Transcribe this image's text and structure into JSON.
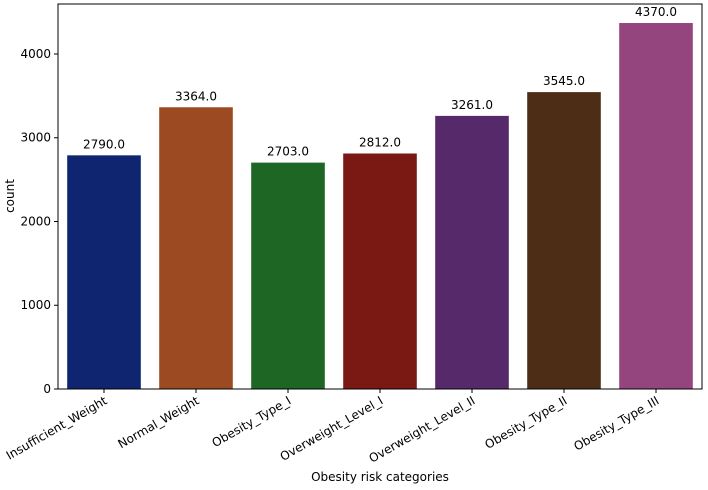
{
  "chart_data": {
    "type": "bar",
    "title": "",
    "xlabel": "Obesity risk categories",
    "ylabel": "count",
    "categories": [
      "Insufficient_Weight",
      "Normal_Weight",
      "Obesity_Type_I",
      "Overweight_Level_I",
      "Overweight_Level_II",
      "Obesity_Type_II",
      "Obesity_Type_III"
    ],
    "values": [
      2790,
      3364,
      2703,
      2812,
      3261,
      3545,
      4370
    ],
    "data_labels": [
      "2790.0",
      "3364.0",
      "2703.0",
      "2812.0",
      "3261.0",
      "3545.0",
      "4370.0"
    ],
    "colors": [
      "#0f2570",
      "#9c4a22",
      "#1e6624",
      "#7a1813",
      "#55296a",
      "#4d2d16",
      "#94457d"
    ],
    "ylim": [
      0,
      4597
    ],
    "yticks": [
      0,
      1000,
      2000,
      3000,
      4000
    ],
    "ytick_labels": [
      "0",
      "1000",
      "2000",
      "3000",
      "4000"
    ],
    "grid": false,
    "legend": "none"
  }
}
